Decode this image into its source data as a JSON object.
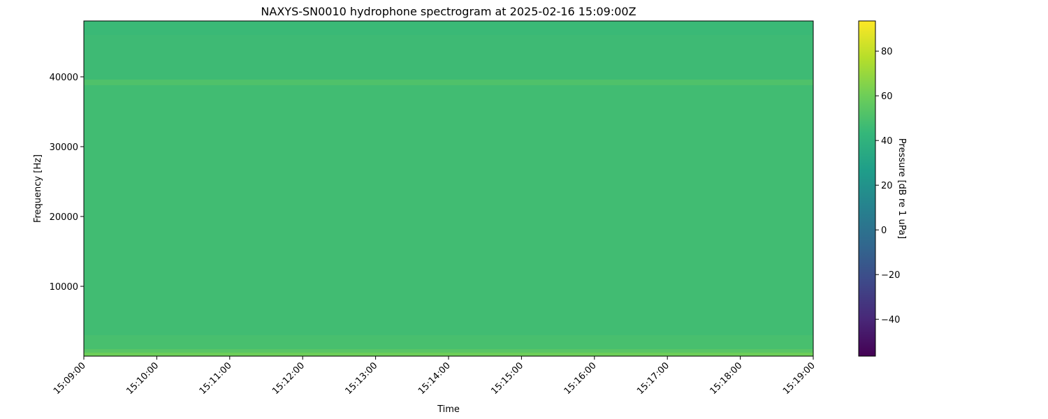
{
  "chart_data": {
    "type": "heatmap",
    "title": "NAXYS-SN0010 hydrophone spectrogram at 2025-02-16 15:09:00Z",
    "xlabel": "Time",
    "ylabel": "Frequency [Hz]",
    "colorbar_label": "Pressure [dB re 1 uPa]",
    "colormap": "viridis",
    "colormap_stops": [
      "#440154",
      "#482878",
      "#3e4989",
      "#31688e",
      "#26828e",
      "#1f9e89",
      "#35b779",
      "#6ece58",
      "#b5de2b",
      "#fde725"
    ],
    "xlim": [
      "15:09:00",
      "15:19:00"
    ],
    "ylim": [
      0,
      48000
    ],
    "clim": [
      -56.5,
      93.5
    ],
    "x_ticks": [
      "15:09:00",
      "15:10:00",
      "15:11:00",
      "15:12:00",
      "15:13:00",
      "15:14:00",
      "15:15:00",
      "15:16:00",
      "15:17:00",
      "15:18:00",
      "15:19:00"
    ],
    "y_ticks": [
      10000,
      20000,
      30000,
      40000
    ],
    "y_tick_labels": [
      "10000",
      "20000",
      "30000",
      "40000"
    ],
    "colorbar_ticks": [
      -40,
      -20,
      0,
      20,
      40,
      60,
      80
    ],
    "colorbar_tick_labels": [
      "−40",
      "−20",
      "0",
      "20",
      "40",
      "60",
      "80"
    ],
    "frequency_profile_db": [
      {
        "f_low": 0,
        "f_high": 500,
        "db": 60
      },
      {
        "f_low": 500,
        "f_high": 1000,
        "db": 54
      },
      {
        "f_low": 1000,
        "f_high": 3000,
        "db": 49
      },
      {
        "f_low": 3000,
        "f_high": 38800,
        "db": 47
      },
      {
        "f_low": 38800,
        "f_high": 39600,
        "db": 51
      },
      {
        "f_low": 39600,
        "f_high": 46000,
        "db": 46
      },
      {
        "f_low": 46000,
        "f_high": 48000,
        "db": 45
      }
    ],
    "grid": false
  }
}
